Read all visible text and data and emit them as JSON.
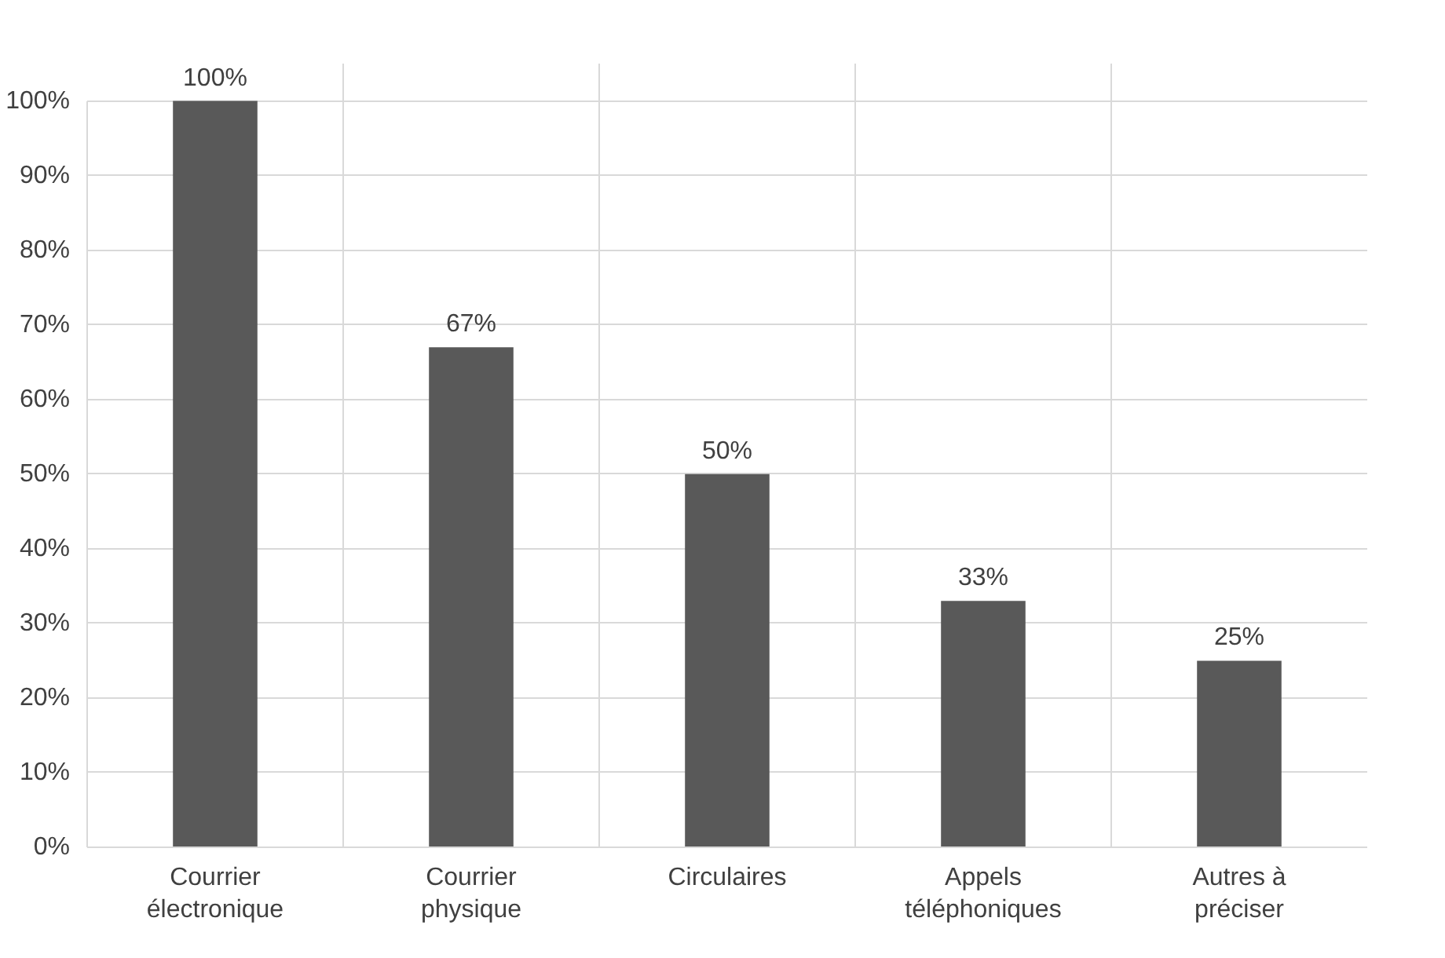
{
  "chart_data": {
    "type": "bar",
    "categories": [
      "Courrier\nélectronique",
      "Courrier\nphysique",
      "Circulaires",
      "Appels\ntéléphoniques",
      "Autres à\npréciser"
    ],
    "values": [
      100,
      67,
      50,
      33,
      25
    ],
    "value_labels": [
      "100%",
      "67%",
      "50%",
      "33%",
      "25%"
    ],
    "color": "#595959",
    "ylim": [
      0,
      100
    ],
    "yticks": [
      {
        "value": 0,
        "label": "0%"
      },
      {
        "value": 10,
        "label": "10%"
      },
      {
        "value": 20,
        "label": "20%"
      },
      {
        "value": 30,
        "label": "30%"
      },
      {
        "value": 40,
        "label": "40%"
      },
      {
        "value": 50,
        "label": "50%"
      },
      {
        "value": 60,
        "label": "60%"
      },
      {
        "value": 70,
        "label": "70%"
      },
      {
        "value": 80,
        "label": "80%"
      },
      {
        "value": 90,
        "label": "90%"
      },
      {
        "value": 100,
        "label": "100%"
      }
    ],
    "grid": true
  }
}
